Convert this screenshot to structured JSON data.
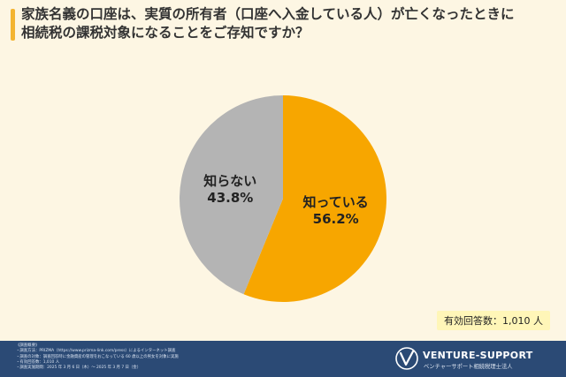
{
  "title_lines": [
    "家族名義の口座は、実質の所有者（口座へ入金している人）が亡くなったときに",
    "相続税の課税対象になることをご存知ですか？"
  ],
  "respondents": "有効回答数：1,010 人",
  "footer": {
    "notes": [
      "《調査概要》",
      "・調査方法：PRIZMA（https://www.prizma-link.com/press）によるインターネット調査",
      "・調査の対象：調査回答時に金融資産の管理をおこなっている 60 歳以上の男女を対象に実施",
      "・有効回答数：1,010 人",
      "・調査実施期間：2025 年 3 月 6 日（木）～ 2025 年 3 月 7 日（金）"
    ],
    "logo_name": "VENTURE-SUPPORT",
    "logo_sub": "ベンチャーサポート相続税理士法人"
  },
  "colors": {
    "background": "#fdf6e3",
    "accent": "#f3b431",
    "footer": "#2b4a75"
  },
  "chart_data": {
    "type": "pie",
    "start": "12 o'clock",
    "direction": "clockwise",
    "slices": [
      {
        "label": "知っている",
        "value": 56.2,
        "display": "56.2%",
        "color": "#f7a600"
      },
      {
        "label": "知らない",
        "value": 43.8,
        "display": "43.8%",
        "color": "#b4b4b4"
      }
    ]
  }
}
